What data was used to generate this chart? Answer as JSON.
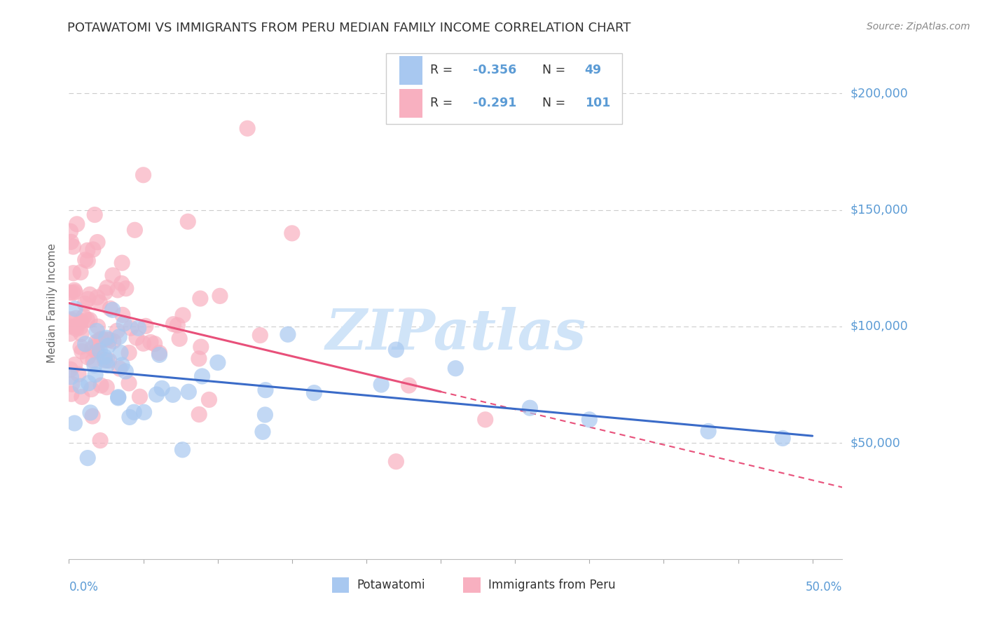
{
  "title": "POTAWATOMI VS IMMIGRANTS FROM PERU MEDIAN FAMILY INCOME CORRELATION CHART",
  "source": "Source: ZipAtlas.com",
  "ylabel": "Median Family Income",
  "ylim": [
    0,
    220000
  ],
  "xlim": [
    0.0,
    0.52
  ],
  "color_blue": "#A8C8F0",
  "color_pink": "#F8B0C0",
  "color_blue_edge": "#7AAAD8",
  "color_pink_edge": "#E87898",
  "color_trend_blue": "#3A6BC8",
  "color_trend_pink": "#E8507A",
  "watermark_color": "#D0E4F8",
  "grid_color": "#CCCCCC",
  "background_color": "#FFFFFF",
  "title_color": "#333333",
  "axis_label_color": "#5B9BD5",
  "legend_text_color": "#333333",
  "source_color": "#888888"
}
